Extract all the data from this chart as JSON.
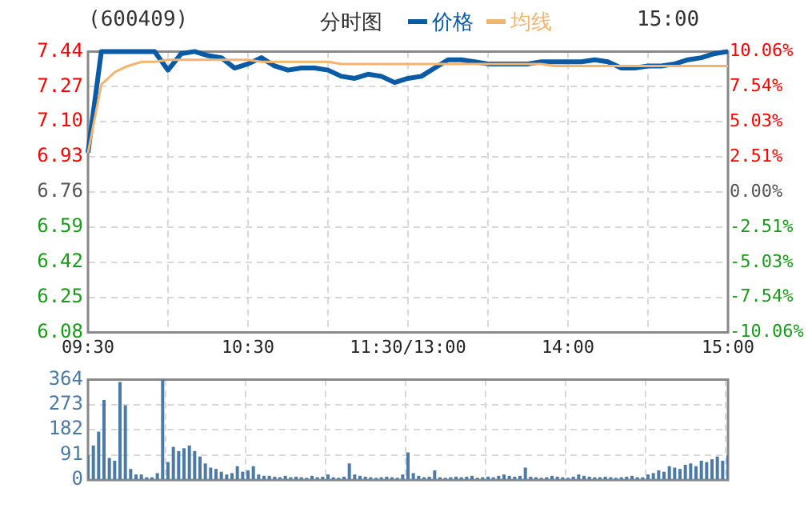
{
  "chart_data": [
    {
      "type": "line",
      "title": "(600409)",
      "subtitle": "分时图",
      "annotations": [
        "15:00"
      ],
      "legend": "top",
      "grid": true,
      "marker": "none",
      "line_style": "solid",
      "categories": [
        "09:30",
        null,
        null,
        null,
        null,
        null,
        null,
        null,
        null,
        null,
        null,
        null,
        "10:30",
        null,
        null,
        null,
        null,
        null,
        null,
        null,
        null,
        null,
        null,
        null,
        "11:30/13:00",
        null,
        null,
        null,
        null,
        null,
        null,
        null,
        null,
        null,
        null,
        null,
        "14:00",
        null,
        null,
        null,
        null,
        null,
        null,
        null,
        null,
        null,
        null,
        null,
        "15:00"
      ],
      "ylim": [
        6.08,
        7.44
      ],
      "yticks": [
        6.08,
        6.25,
        6.42,
        6.59,
        6.76,
        6.93,
        {
          "value": 7.1,
          "label": "7.10"
        },
        7.27,
        7.44
      ],
      "y2lim": [
        -10.06,
        10.06
      ],
      "y2ticks": [
        {
          "value": -10.06,
          "label": "-10.06%"
        },
        {
          "value": -7.54,
          "label": "-7.54%"
        },
        {
          "value": -5.03,
          "label": "-5.03%"
        },
        {
          "value": -2.51,
          "label": "-2.51%"
        },
        {
          "value": 0,
          "label": "0.00%"
        },
        {
          "value": 2.51,
          "label": "2.51%"
        },
        {
          "value": 5.03,
          "label": "5.03%"
        },
        {
          "value": 7.54,
          "label": "7.54%"
        },
        {
          "value": 10.06,
          "label": "10.06%"
        }
      ],
      "series": [
        {
          "name": "价格",
          "color": "#0a5aa5",
          "values": [
            6.95,
            7.44,
            7.44,
            7.44,
            7.44,
            7.44,
            7.35,
            7.43,
            7.44,
            7.42,
            7.41,
            7.36,
            7.38,
            7.41,
            7.37,
            7.35,
            7.36,
            7.36,
            7.35,
            7.32,
            7.31,
            7.33,
            7.32,
            7.29,
            7.31,
            7.32,
            7.36,
            7.4,
            7.4,
            7.39,
            7.38,
            7.38,
            7.38,
            7.38,
            7.39,
            7.39,
            7.39,
            7.39,
            7.4,
            7.39,
            7.36,
            7.36,
            7.37,
            7.37,
            7.38,
            7.4,
            7.41,
            7.43,
            7.44
          ]
        },
        {
          "name": "均线",
          "color": "#f5b46e",
          "values": [
            6.95,
            7.28,
            7.34,
            7.37,
            7.39,
            7.39,
            7.4,
            7.4,
            7.4,
            7.4,
            7.4,
            7.4,
            7.4,
            7.39,
            7.39,
            7.39,
            7.39,
            7.39,
            7.39,
            7.38,
            7.38,
            7.38,
            7.38,
            7.38,
            7.38,
            7.38,
            7.38,
            7.38,
            7.38,
            7.38,
            7.38,
            7.38,
            7.38,
            7.38,
            7.38,
            7.37,
            7.37,
            7.37,
            7.37,
            7.37,
            7.37,
            7.37,
            7.37,
            7.37,
            7.37,
            7.37,
            7.37,
            7.37,
            7.37
          ]
        }
      ]
    },
    {
      "type": "bar",
      "grid": true,
      "tick_labels": "y",
      "categories": [
        null,
        null,
        null,
        null,
        null,
        null,
        null,
        null,
        null,
        null,
        null,
        null,
        null,
        null,
        null,
        null,
        null,
        null,
        null,
        null,
        null,
        null,
        null,
        null,
        null,
        null,
        null,
        null,
        null,
        null,
        null,
        null,
        null,
        null,
        null,
        null,
        null,
        null,
        null,
        null,
        null,
        null,
        null,
        null,
        null,
        null,
        null,
        null,
        null,
        null,
        null,
        null,
        null,
        null,
        null,
        null,
        null,
        null,
        null,
        null,
        null,
        null,
        null,
        null,
        null,
        null,
        null,
        null,
        null,
        null,
        null,
        null,
        null,
        null,
        null,
        null,
        null,
        null,
        null,
        null,
        null,
        null,
        null,
        null,
        null,
        null,
        null,
        null,
        null,
        null,
        null,
        null,
        null,
        null,
        null,
        null,
        null,
        null,
        null,
        null,
        null,
        null,
        null,
        null,
        null,
        null,
        null,
        null,
        null,
        null,
        null,
        null,
        null,
        null,
        null,
        null,
        null,
        null,
        null,
        null,
        null
      ],
      "ylim": [
        0,
        364
      ],
      "yticks": [
        0,
        91,
        182,
        273,
        364
      ],
      "series": [
        {
          "color": "#4a7aa5",
          "values": [
            90,
            125,
            175,
            290,
            80,
            70,
            355,
            270,
            40,
            20,
            20,
            10,
            10,
            25,
            364,
            65,
            120,
            105,
            115,
            125,
            105,
            85,
            60,
            45,
            40,
            30,
            20,
            25,
            50,
            30,
            35,
            50,
            20,
            15,
            15,
            12,
            10,
            15,
            10,
            12,
            10,
            8,
            15,
            10,
            12,
            20,
            10,
            8,
            12,
            60,
            20,
            15,
            12,
            10,
            8,
            10,
            12,
            10,
            8,
            20,
            100,
            25,
            15,
            10,
            12,
            35,
            10,
            8,
            10,
            12,
            10,
            12,
            15,
            8,
            10,
            12,
            10,
            15,
            20,
            15,
            12,
            15,
            45,
            12,
            10,
            8,
            10,
            15,
            12,
            10,
            8,
            12,
            20,
            15,
            12,
            10,
            10,
            12,
            10,
            8,
            10,
            12,
            15,
            10,
            10,
            20,
            25,
            35,
            30,
            50,
            45,
            40,
            55,
            60,
            50,
            70,
            65,
            75,
            85,
            70,
            90
          ]
        }
      ]
    }
  ]
}
